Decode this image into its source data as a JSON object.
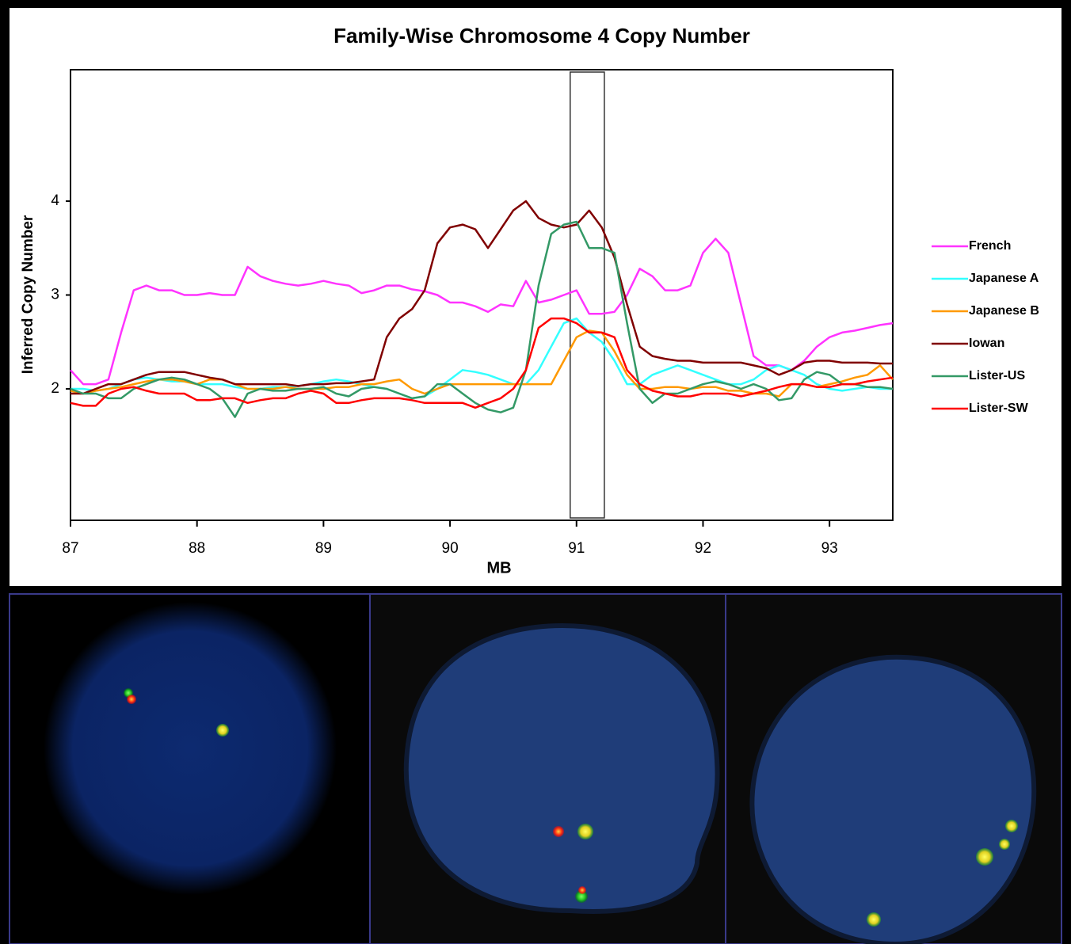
{
  "chart_data": {
    "type": "line",
    "title": "Family-Wise Chromosome 4 Copy Number",
    "x_label": "MB",
    "y_label": "Inferred Copy Number",
    "xlim": [
      87,
      93.5
    ],
    "xticks": [
      87,
      88,
      89,
      90,
      91,
      92,
      93
    ],
    "ylim": [
      0.6,
      5.4
    ],
    "yticks": [
      2,
      3,
      4
    ],
    "legend": "right",
    "highlight_region": [
      90.95,
      91.22
    ],
    "x": [
      87.0,
      87.1,
      87.2,
      87.3,
      87.4,
      87.5,
      87.6,
      87.7,
      87.8,
      87.9,
      88.0,
      88.1,
      88.2,
      88.3,
      88.4,
      88.5,
      88.6,
      88.7,
      88.8,
      88.9,
      89.0,
      89.1,
      89.2,
      89.3,
      89.4,
      89.5,
      89.6,
      89.7,
      89.8,
      89.9,
      90.0,
      90.1,
      90.2,
      90.3,
      90.4,
      90.5,
      90.6,
      90.7,
      90.8,
      90.9,
      91.0,
      91.1,
      91.2,
      91.3,
      91.4,
      91.5,
      91.6,
      91.7,
      91.8,
      91.9,
      92.0,
      92.1,
      92.2,
      92.3,
      92.4,
      92.5,
      92.6,
      92.7,
      92.8,
      92.9,
      93.0,
      93.1,
      93.2,
      93.3,
      93.4,
      93.5
    ],
    "series": [
      {
        "name": "French",
        "color": "#ff33ff",
        "values": [
          2.2,
          2.05,
          2.05,
          2.1,
          2.6,
          3.05,
          3.1,
          3.05,
          3.05,
          3.0,
          3.0,
          3.02,
          3.0,
          3.0,
          3.3,
          3.2,
          3.15,
          3.12,
          3.1,
          3.12,
          3.15,
          3.12,
          3.1,
          3.02,
          3.05,
          3.1,
          3.1,
          3.06,
          3.04,
          3.0,
          2.92,
          2.92,
          2.88,
          2.82,
          2.9,
          2.88,
          3.15,
          2.92,
          2.95,
          3.0,
          3.05,
          2.8,
          2.8,
          2.82,
          3.0,
          3.28,
          3.2,
          3.05,
          3.05,
          3.1,
          3.45,
          3.6,
          3.45,
          2.9,
          2.35,
          2.25,
          2.25,
          2.2,
          2.3,
          2.45,
          2.55,
          2.6,
          2.62,
          2.65,
          2.68,
          2.7
        ]
      },
      {
        "name": "Japanese A",
        "color": "#33ffff",
        "values": [
          2.0,
          2.0,
          1.98,
          2.0,
          2.05,
          2.1,
          2.12,
          2.1,
          2.08,
          2.08,
          2.05,
          2.05,
          2.05,
          2.02,
          2.0,
          2.0,
          2.02,
          2.02,
          2.03,
          2.05,
          2.08,
          2.1,
          2.08,
          2.05,
          2.02,
          2.0,
          1.95,
          1.9,
          1.92,
          2.0,
          2.1,
          2.2,
          2.18,
          2.15,
          2.1,
          2.05,
          2.05,
          2.2,
          2.45,
          2.7,
          2.75,
          2.6,
          2.5,
          2.3,
          2.05,
          2.05,
          2.15,
          2.2,
          2.25,
          2.2,
          2.15,
          2.1,
          2.05,
          2.05,
          2.1,
          2.2,
          2.25,
          2.2,
          2.15,
          2.05,
          2.0,
          1.98,
          2.0,
          2.02,
          2.0,
          2.0
        ]
      },
      {
        "name": "Japanese B",
        "color": "#ff9900",
        "values": [
          1.98,
          1.95,
          1.98,
          2.0,
          2.02,
          2.05,
          2.08,
          2.1,
          2.1,
          2.08,
          2.05,
          2.1,
          2.1,
          2.05,
          2.0,
          2.0,
          2.0,
          2.02,
          2.0,
          2.0,
          2.0,
          2.02,
          2.02,
          2.05,
          2.05,
          2.08,
          2.1,
          2.0,
          1.95,
          2.0,
          2.05,
          2.05,
          2.05,
          2.05,
          2.05,
          2.05,
          2.05,
          2.05,
          2.05,
          2.3,
          2.55,
          2.62,
          2.6,
          2.4,
          2.15,
          2.0,
          2.0,
          2.02,
          2.02,
          2.0,
          2.02,
          2.02,
          1.98,
          1.98,
          1.95,
          1.95,
          1.92,
          2.05,
          2.05,
          2.02,
          2.05,
          2.08,
          2.12,
          2.15,
          2.25,
          2.1
        ]
      },
      {
        "name": "Iowan",
        "color": "#800000",
        "values": [
          1.95,
          1.95,
          2.0,
          2.05,
          2.05,
          2.1,
          2.15,
          2.18,
          2.18,
          2.18,
          2.15,
          2.12,
          2.1,
          2.05,
          2.05,
          2.05,
          2.05,
          2.05,
          2.03,
          2.05,
          2.05,
          2.06,
          2.06,
          2.08,
          2.1,
          2.55,
          2.75,
          2.85,
          3.05,
          3.55,
          3.72,
          3.75,
          3.7,
          3.5,
          3.7,
          3.9,
          4.0,
          3.82,
          3.75,
          3.72,
          3.75,
          3.9,
          3.72,
          3.4,
          2.9,
          2.45,
          2.35,
          2.32,
          2.3,
          2.3,
          2.28,
          2.28,
          2.28,
          2.28,
          2.25,
          2.22,
          2.15,
          2.2,
          2.28,
          2.3,
          2.3,
          2.28,
          2.28,
          2.28,
          2.27,
          2.27
        ]
      },
      {
        "name": "Lister-US",
        "color": "#339966",
        "values": [
          2.0,
          1.95,
          1.95,
          1.9,
          1.9,
          2.0,
          2.05,
          2.1,
          2.12,
          2.1,
          2.05,
          2.0,
          1.9,
          1.7,
          1.95,
          2.0,
          1.98,
          1.98,
          2.0,
          2.0,
          2.02,
          1.95,
          1.92,
          2.0,
          2.02,
          2.0,
          1.95,
          1.9,
          1.92,
          2.05,
          2.05,
          1.95,
          1.85,
          1.78,
          1.75,
          1.8,
          2.2,
          3.1,
          3.65,
          3.75,
          3.78,
          3.5,
          3.5,
          3.45,
          2.7,
          2.0,
          1.85,
          1.95,
          1.95,
          2.0,
          2.05,
          2.08,
          2.05,
          2.0,
          2.05,
          2.0,
          1.88,
          1.9,
          2.1,
          2.18,
          2.15,
          2.05,
          2.05,
          2.02,
          2.02,
          2.0
        ]
      },
      {
        "name": "Lister-SW",
        "color": "#ff0000",
        "values": [
          1.85,
          1.82,
          1.82,
          1.95,
          2.0,
          2.02,
          1.98,
          1.95,
          1.95,
          1.95,
          1.88,
          1.88,
          1.9,
          1.9,
          1.85,
          1.88,
          1.9,
          1.9,
          1.95,
          1.98,
          1.95,
          1.85,
          1.85,
          1.88,
          1.9,
          1.9,
          1.9,
          1.88,
          1.85,
          1.85,
          1.85,
          1.85,
          1.8,
          1.85,
          1.9,
          2.0,
          2.2,
          2.65,
          2.75,
          2.75,
          2.7,
          2.6,
          2.6,
          2.55,
          2.2,
          2.05,
          1.98,
          1.95,
          1.92,
          1.92,
          1.95,
          1.95,
          1.95,
          1.92,
          1.95,
          1.98,
          2.02,
          2.05,
          2.05,
          2.02,
          2.02,
          2.05,
          2.05,
          2.08,
          2.1,
          2.12
        ]
      }
    ]
  }
}
